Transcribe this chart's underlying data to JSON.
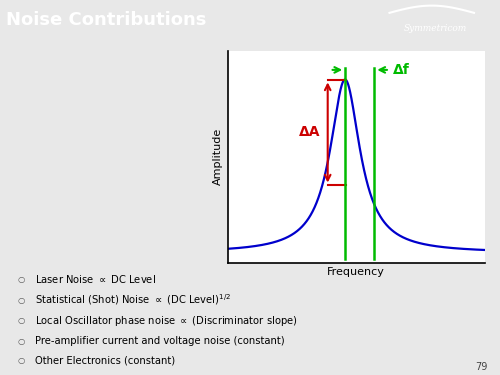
{
  "title": "Noise Contributions",
  "title_bg": "#3a9de0",
  "title_color": "white",
  "title_fontsize": 13,
  "symmetricom_text": "Symmetricom",
  "page_number": "79",
  "bg_color": "#e8e8e8",
  "plot_bg": "white",
  "curve_color": "#0000cc",
  "arrow_red": "#cc0000",
  "arrow_green": "#00bb00",
  "xlabel": "Frequency",
  "ylabel": "Amplitude",
  "delta_A_label": "ΔA",
  "delta_f_label": "Δf",
  "bullet_texts": [
    "Laser Noise $\\propto$ DC Level",
    "Statistical (Shot) Noise $\\propto$ (DC Level)$^{1/2}$",
    "Local Oscillator phase noise $\\propto$ (Discriminator slope)",
    "Pre-amplifier current and voltage noise (constant)",
    "Other Electronics (constant)"
  ]
}
